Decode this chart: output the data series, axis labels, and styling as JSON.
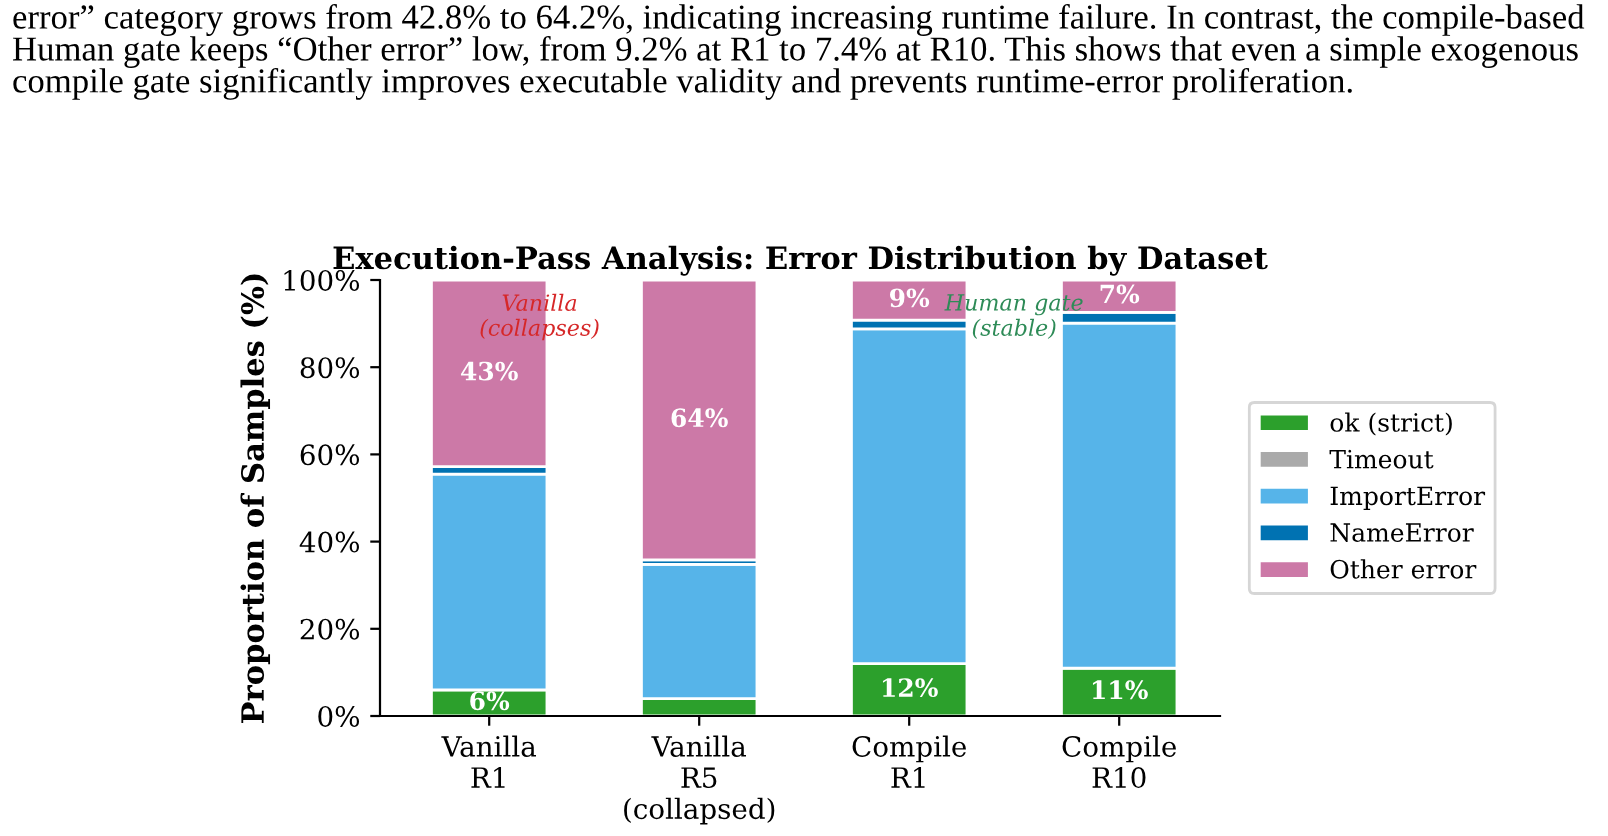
{
  "chart_data": {
    "type": "bar",
    "stacked": true,
    "title": "Execution-Pass Analysis: Error Distribution by Dataset",
    "ylabel": "Proportion of Samples (%)",
    "categories": [
      "Vanilla\nR1",
      "Vanilla\nR5\n(collapsed)",
      "Compile\nR1",
      "Compile\nR10"
    ],
    "series": [
      {
        "name": "ok (strict)",
        "color": "#2ca02c",
        "values": [
          6,
          4,
          12,
          11
        ],
        "value_labels": [
          "6%",
          null,
          "12%",
          "11%"
        ]
      },
      {
        "name": "Timeout",
        "color": "#aaaaaa",
        "values": [
          0,
          0,
          0,
          0
        ]
      },
      {
        "name": "ImportError",
        "color": "#56b4e9",
        "values": [
          49.5,
          30.8,
          76.8,
          79.1
        ]
      },
      {
        "name": "NameError",
        "color": "#0072b2",
        "values": [
          1.7,
          1.0,
          2.0,
          2.5
        ]
      },
      {
        "name": "Other error",
        "color": "#cc79a7",
        "values": [
          42.8,
          64.2,
          9.2,
          7.4
        ],
        "value_labels": [
          "43%",
          "64%",
          "9%",
          "7%"
        ]
      }
    ],
    "ylim": [
      0,
      100
    ],
    "yticks": [
      {
        "value": 0,
        "label": "0%"
      },
      {
        "value": 20,
        "label": "20%"
      },
      {
        "value": 40,
        "label": "40%"
      },
      {
        "value": 60,
        "label": "60%"
      },
      {
        "value": 80,
        "label": "80%"
      },
      {
        "value": 100,
        "label": "100%"
      }
    ],
    "grid": false,
    "legend": "right",
    "annotations": [
      "error” category grows from 42.8% to 64.2%, indicating increasing runtime failure. In contrast, the compile-based Human gate keeps “Other error” low, from 9.2% at R1 to 7.4% at R10. This shows that even a simple exogenous compile gate significantly improves executable validity and prevents runtime-error proliferation.",
      "Vanilla\n(collapses)",
      "Human gate\n(stable)"
    ]
  }
}
